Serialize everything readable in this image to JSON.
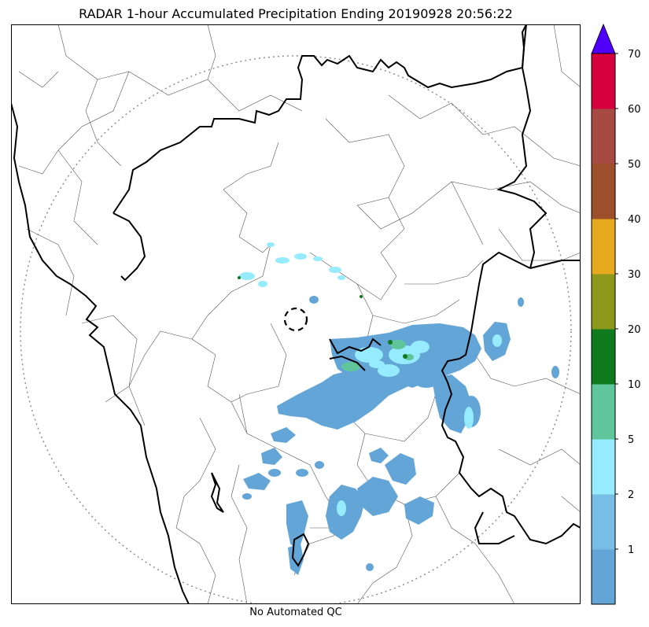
{
  "title": "RADAR 1-hour Accumulated Precipitation Ending 20190928 20:56:22",
  "footer": "No Automated QC",
  "colorbar": {
    "ticks": [
      "1",
      "2",
      "5",
      "10",
      "20",
      "30",
      "40",
      "50",
      "60",
      "70"
    ],
    "colors": [
      "#64a5d8",
      "#78bde5",
      "#96ecfe",
      "#5fc59b",
      "#107a1e",
      "#8c971b",
      "#e7aa1e",
      "#9c4f2a",
      "#a84a44",
      "#d7003f"
    ],
    "extend_color": "#5000fa"
  }
}
